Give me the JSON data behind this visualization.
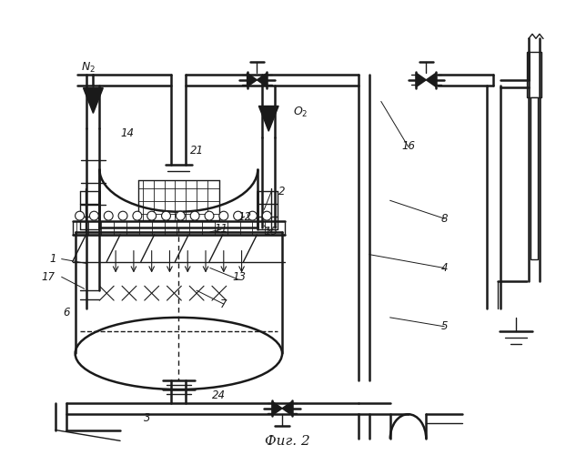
{
  "bg_color": "#ffffff",
  "line_color": "#1a1a1a",
  "fig_width": 6.33,
  "fig_height": 5.0,
  "dpi": 100,
  "title": "Фиг. 2"
}
